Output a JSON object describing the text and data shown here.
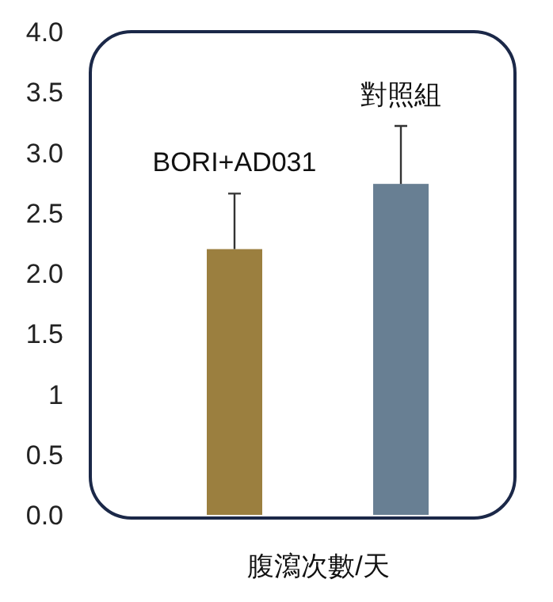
{
  "chart_data": {
    "type": "bar",
    "xlabel": "腹瀉次數/天",
    "categories": [
      "BORI+AD031",
      "對照組"
    ],
    "values": [
      2.2,
      2.74
    ],
    "colors": [
      "#9b7f3f",
      "#687f93"
    ],
    "errors": [
      [
        2.2,
        2.66
      ],
      [
        2.74,
        3.22
      ]
    ],
    "ylim": [
      0,
      4
    ],
    "yticks": [
      {
        "value": 0,
        "label": "0.0"
      },
      0.5,
      1,
      1.5,
      {
        "value": 2,
        "label": "2.0"
      },
      2.5,
      {
        "value": 3,
        "label": "3.0"
      },
      3.5,
      {
        "value": 4,
        "label": "4.0"
      }
    ],
    "grid": false
  }
}
